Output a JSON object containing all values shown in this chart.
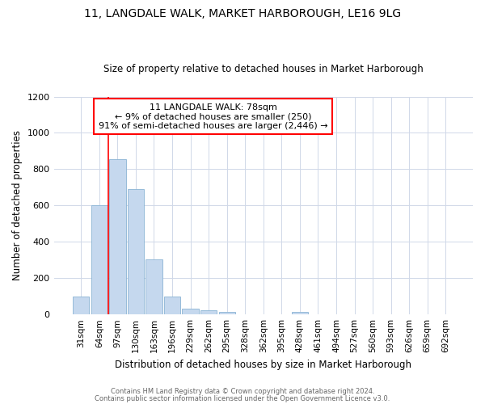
{
  "title": "11, LANGDALE WALK, MARKET HARBOROUGH, LE16 9LG",
  "subtitle": "Size of property relative to detached houses in Market Harborough",
  "xlabel": "Distribution of detached houses by size in Market Harborough",
  "ylabel": "Number of detached properties",
  "footer1": "Contains HM Land Registry data © Crown copyright and database right 2024.",
  "footer2": "Contains public sector information licensed under the Open Government Licence v3.0.",
  "bar_labels": [
    "31sqm",
    "64sqm",
    "97sqm",
    "130sqm",
    "163sqm",
    "196sqm",
    "229sqm",
    "262sqm",
    "295sqm",
    "328sqm",
    "362sqm",
    "395sqm",
    "428sqm",
    "461sqm",
    "494sqm",
    "527sqm",
    "560sqm",
    "593sqm",
    "626sqm",
    "659sqm",
    "692sqm"
  ],
  "bar_values": [
    100,
    600,
    855,
    690,
    305,
    100,
    32,
    22,
    15,
    0,
    0,
    0,
    15,
    0,
    0,
    0,
    0,
    0,
    0,
    0,
    0
  ],
  "bar_color": "#c5d8ee",
  "bar_edge_color": "#8ab4d4",
  "ylim": [
    0,
    1200
  ],
  "yticks": [
    0,
    200,
    400,
    600,
    800,
    1000,
    1200
  ],
  "red_line_x": 1.5,
  "annotation_line1": "11 LANGDALE WALK: 78sqm",
  "annotation_line2": "← 9% of detached houses are smaller (250)",
  "annotation_line3": "91% of semi-detached houses are larger (2,446) →",
  "bg_color": "#ffffff",
  "plot_bg_color": "#ffffff",
  "grid_color": "#d0d8e8"
}
